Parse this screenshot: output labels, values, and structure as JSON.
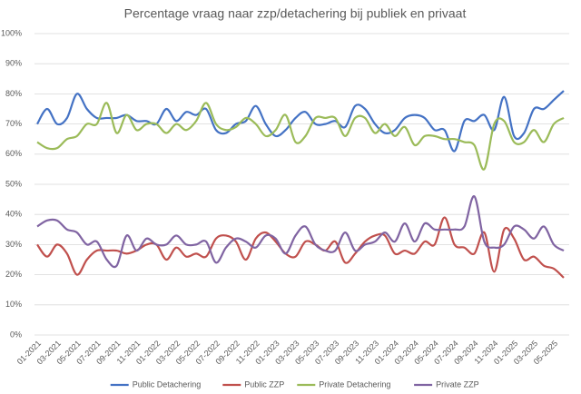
{
  "chart_data": {
    "type": "line",
    "title": "Percentage vraag naar zzp/detachering bij publiek en privaat",
    "categories": [
      "01-2021",
      null,
      "03-2021",
      null,
      "05-2021",
      null,
      "07-2021",
      null,
      "09-2021",
      null,
      "11-2021",
      null,
      "01-2022",
      null,
      "03-2022",
      null,
      "05-2022",
      null,
      "07-2022",
      null,
      "09-2022",
      null,
      "11-2022",
      null,
      "01-2023",
      null,
      "03-2023",
      null,
      "05-2023",
      null,
      "07-2023",
      null,
      "09-2023",
      null,
      "11-2023",
      null,
      "01-2024",
      null,
      "03-2024",
      null,
      "05-2024",
      null,
      "07-2024",
      null,
      "09-2024",
      null,
      "11-2024",
      null,
      "01-2025",
      null,
      "03-2025",
      null,
      "05-2025",
      null
    ],
    "series": [
      {
        "name": "Public Detachering",
        "color": "#4472c4",
        "values": [
          70,
          75,
          70,
          72,
          80,
          75,
          72,
          72,
          72,
          73,
          71,
          71,
          70,
          75,
          71,
          74,
          73,
          75,
          68,
          67,
          70,
          71,
          76,
          70,
          66,
          68,
          72,
          74,
          70,
          70,
          71,
          69,
          76,
          75,
          70,
          67,
          68,
          72,
          73,
          72,
          68,
          68,
          61,
          71,
          71,
          73,
          68,
          79,
          66,
          67,
          75,
          75,
          78,
          81
        ]
      },
      {
        "name": "Public ZZP",
        "color": "#c0504d",
        "values": [
          30,
          26,
          30,
          27,
          20,
          25,
          28,
          28,
          28,
          27,
          28,
          30,
          30,
          25,
          29,
          26,
          27,
          26,
          32,
          33,
          31,
          25,
          32,
          34,
          31,
          27,
          26,
          31,
          30,
          28,
          31,
          24,
          27,
          31,
          33,
          33,
          27,
          28,
          27,
          31,
          30,
          39,
          30,
          29,
          27,
          34,
          21,
          35,
          32,
          25,
          26,
          23,
          22,
          19
        ]
      },
      {
        "name": "Private Detachering",
        "color": "#9bbb59",
        "values": [
          64,
          62,
          62,
          65,
          66,
          70,
          70,
          77,
          67,
          73,
          68,
          70,
          70,
          67,
          70,
          68,
          71,
          77,
          70,
          68,
          69,
          72,
          70,
          66,
          68,
          73,
          64,
          66,
          72,
          72,
          72,
          66,
          72,
          72,
          67,
          70,
          66,
          69,
          63,
          66,
          66,
          65,
          65,
          64,
          63,
          55,
          70,
          71,
          64,
          64,
          68,
          64,
          70,
          72
        ]
      },
      {
        "name": "Private ZZP",
        "color": "#8064a2",
        "values": [
          36,
          38,
          38,
          35,
          34,
          30,
          31,
          25,
          23,
          33,
          28,
          32,
          30,
          30,
          33,
          30,
          30,
          31,
          24,
          29,
          32,
          31,
          29,
          33,
          32,
          27,
          33,
          36,
          30,
          28,
          28,
          34,
          28,
          30,
          31,
          34,
          31,
          37,
          31,
          37,
          35,
          35,
          35,
          36,
          46,
          31,
          29,
          30,
          36,
          35,
          32,
          36,
          30,
          28
        ]
      }
    ],
    "ylim": [
      0,
      100
    ],
    "yticks": [
      {
        "value": 0,
        "label": "0%"
      },
      {
        "value": 10,
        "label": "10%"
      },
      {
        "value": 20,
        "label": "20%"
      },
      {
        "value": 30,
        "label": "30%"
      },
      {
        "value": 40,
        "label": "40%"
      },
      {
        "value": 50,
        "label": "50%"
      },
      {
        "value": 60,
        "label": "60%"
      },
      {
        "value": 70,
        "label": "70%"
      },
      {
        "value": 80,
        "label": "80%"
      },
      {
        "value": 90,
        "label": "90%"
      },
      {
        "value": 100,
        "label": "100%"
      }
    ],
    "grid": true,
    "legend": "bottom"
  }
}
